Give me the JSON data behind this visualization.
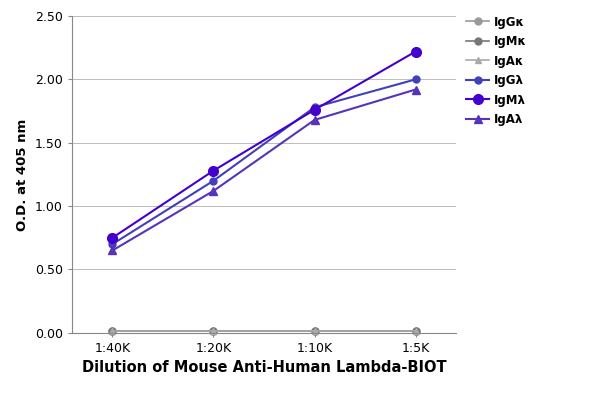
{
  "x_labels": [
    "1:40K",
    "1:20K",
    "1:10K",
    "1:5K"
  ],
  "x_positions": [
    0,
    1,
    2,
    3
  ],
  "series": [
    {
      "label": "IgGκ",
      "color": "#999999",
      "marker": "o",
      "markersize": 5,
      "linewidth": 1.2,
      "values": [
        0.018,
        0.018,
        0.018,
        0.018
      ],
      "zorder": 2,
      "linestyle": "-"
    },
    {
      "label": "IgMκ",
      "color": "#777777",
      "marker": "o",
      "markersize": 5,
      "linewidth": 1.2,
      "values": [
        0.018,
        0.018,
        0.018,
        0.018
      ],
      "zorder": 2,
      "linestyle": "-"
    },
    {
      "label": "IgAκ",
      "color": "#aaaaaa",
      "marker": "^",
      "markersize": 5,
      "linewidth": 1.2,
      "values": [
        0.018,
        0.018,
        0.018,
        0.018
      ],
      "zorder": 2,
      "linestyle": "-"
    },
    {
      "label": "IgGλ",
      "color": "#4040bb",
      "marker": "o",
      "markersize": 5,
      "linewidth": 1.5,
      "values": [
        0.7,
        1.2,
        1.78,
        2.0
      ],
      "zorder": 3,
      "linestyle": "-"
    },
    {
      "label": "IgMλ",
      "color": "#4400cc",
      "marker": "o",
      "markersize": 7,
      "linewidth": 1.5,
      "values": [
        0.75,
        1.28,
        1.76,
        2.22
      ],
      "zorder": 4,
      "linestyle": "-"
    },
    {
      "label": "IgAλ",
      "color": "#5533bb",
      "marker": "^",
      "markersize": 6,
      "linewidth": 1.5,
      "values": [
        0.65,
        1.12,
        1.68,
        1.92
      ],
      "zorder": 3,
      "linestyle": "-"
    }
  ],
  "xlabel": "Dilution of Mouse Anti-Human Lambda-BIOT",
  "ylabel": "O.D. at 405 nm",
  "ylim": [
    0.0,
    2.5
  ],
  "yticks": [
    0.0,
    0.5,
    1.0,
    1.5,
    2.0,
    2.5
  ],
  "legend_fontsize": 8.5,
  "xlabel_fontsize": 10.5,
  "ylabel_fontsize": 9.5,
  "tick_fontsize": 9,
  "background_color": "#ffffff",
  "grid_color": "#bbbbbb"
}
